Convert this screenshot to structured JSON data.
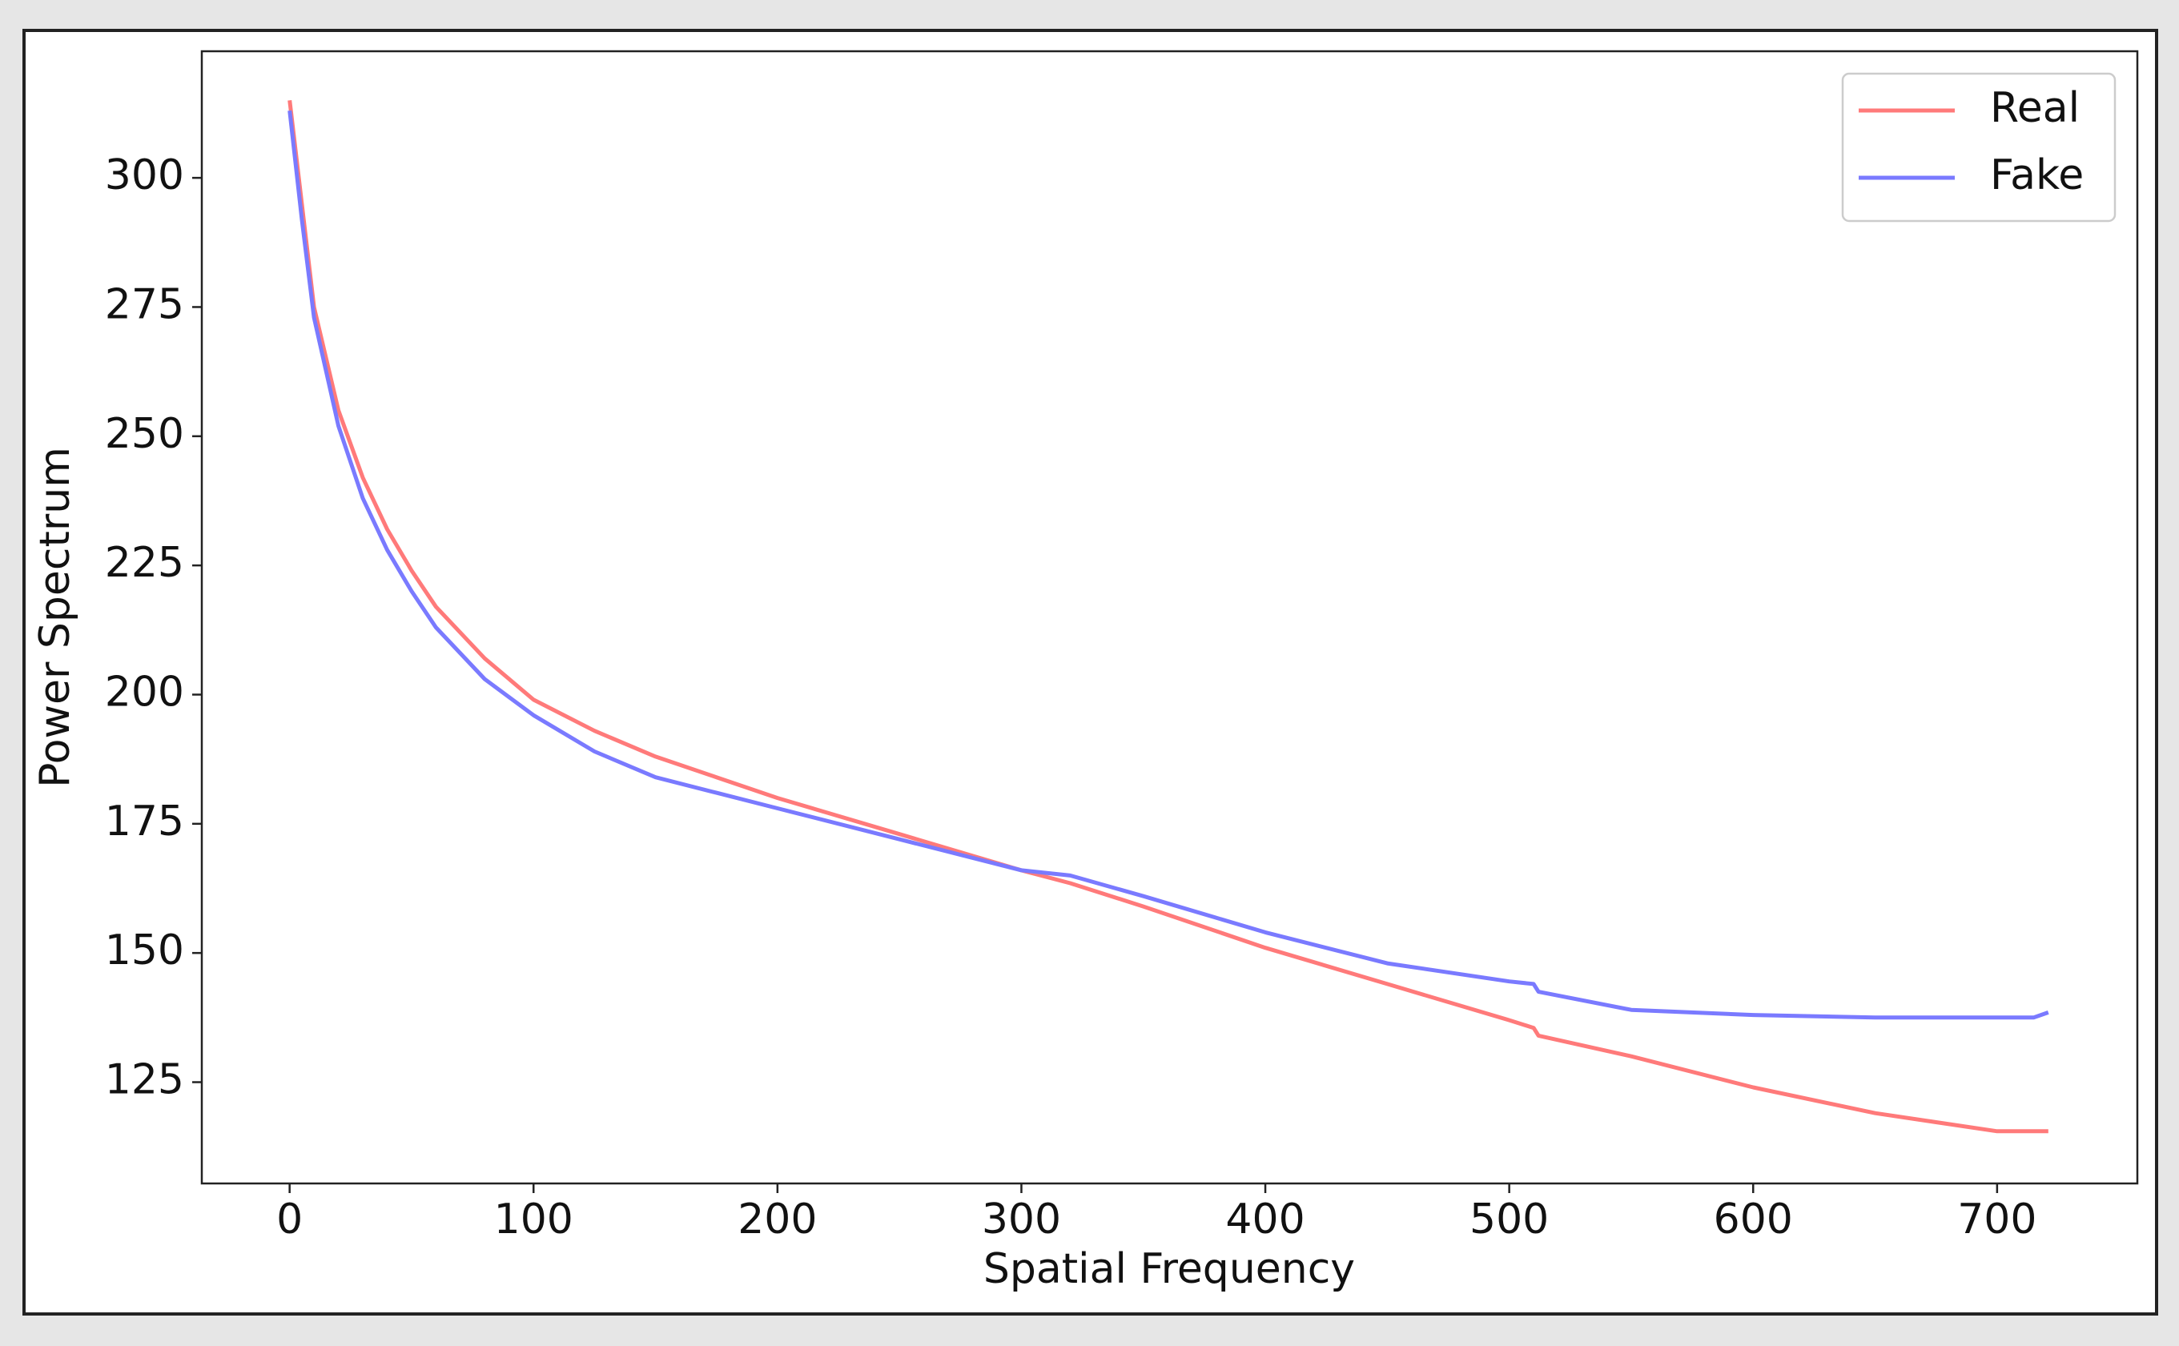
{
  "chart_data": {
    "type": "line",
    "xlabel": "Spatial Frequency",
    "ylabel": "Power Spectrum",
    "x": [
      0,
      5,
      10,
      20,
      30,
      40,
      50,
      60,
      80,
      100,
      125,
      150,
      175,
      200,
      250,
      300,
      320,
      350,
      400,
      450,
      500,
      510,
      512,
      550,
      600,
      650,
      700,
      715,
      721
    ],
    "series": [
      {
        "name": "Real",
        "color": "#ff7a7a",
        "values": [
          315,
          295,
          275,
          255,
          242,
          232,
          224,
          217,
          207,
          199,
          193,
          188,
          184,
          180,
          173,
          166,
          163.5,
          159,
          151,
          144,
          137,
          135.5,
          134,
          130,
          124,
          119,
          115.5,
          115.5,
          115.5
        ]
      },
      {
        "name": "Fake",
        "color": "#7a7aff",
        "values": [
          313,
          292,
          273,
          252,
          238,
          228,
          220,
          213,
          203,
          196,
          189,
          184,
          181,
          178,
          172,
          166,
          165,
          161,
          154,
          148,
          144.5,
          144,
          142.5,
          139,
          138,
          137.5,
          137.5,
          137.5,
          138.5
        ]
      }
    ],
    "xlim": [
      -36,
      757.5
    ],
    "ylim": [
      105.4,
      324.5
    ],
    "xticks": [
      0,
      100,
      200,
      300,
      400,
      500,
      600,
      700
    ],
    "yticks": [
      125,
      150,
      175,
      200,
      225,
      250,
      275,
      300
    ],
    "legend": "upper right"
  }
}
